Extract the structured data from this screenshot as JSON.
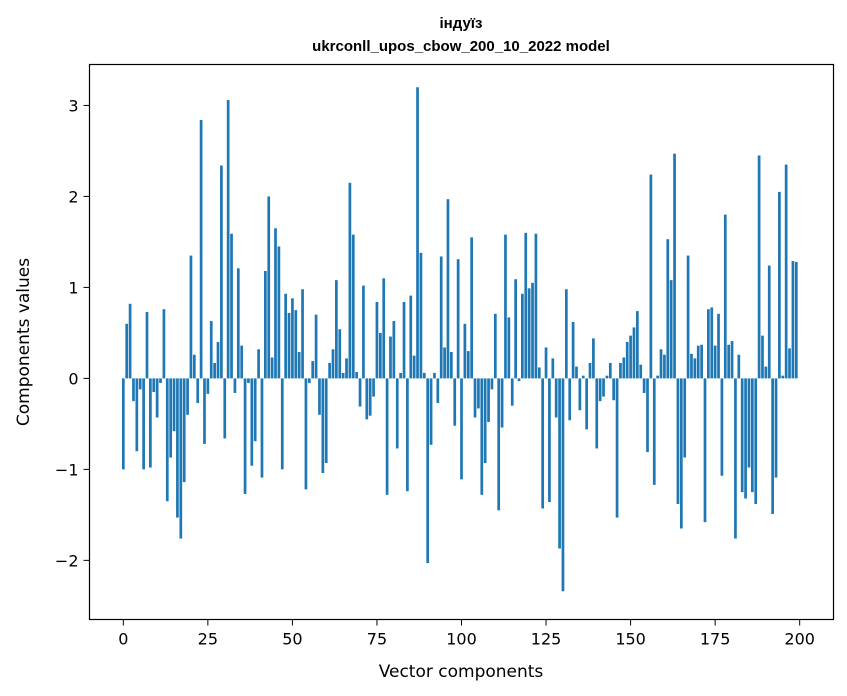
{
  "chart_data": {
    "type": "bar",
    "title": "індуїз",
    "subtitle": "ukrconll_upos_cbow_200_10_2022 model",
    "xlabel": "Vector components",
    "ylabel": "Components values",
    "xlim": [
      -10,
      210
    ],
    "ylim": [
      -2.65,
      3.45
    ],
    "xticks": [
      0,
      25,
      50,
      75,
      100,
      125,
      150,
      175,
      200
    ],
    "yticks": [
      -2,
      -1,
      0,
      1,
      2,
      3
    ],
    "grid": false,
    "bar_color": "#1f77b4",
    "values": [
      -1.0,
      0.6,
      0.82,
      -0.25,
      -0.8,
      -0.12,
      -1.0,
      0.73,
      -0.98,
      -0.15,
      -0.43,
      -0.05,
      0.76,
      -1.35,
      -0.87,
      -0.58,
      -1.53,
      -1.76,
      -1.14,
      -0.4,
      1.35,
      0.26,
      -0.27,
      2.84,
      -0.72,
      -0.17,
      0.63,
      0.17,
      0.4,
      2.34,
      -0.66,
      3.06,
      1.59,
      -0.16,
      1.21,
      0.36,
      -1.27,
      -0.05,
      -0.96,
      -0.69,
      0.32,
      -1.09,
      1.18,
      2.0,
      0.23,
      1.65,
      1.45,
      -1.0,
      0.93,
      0.72,
      0.88,
      0.75,
      0.29,
      0.98,
      -1.22,
      -0.05,
      0.19,
      0.7,
      -0.4,
      -1.04,
      -0.93,
      0.17,
      0.32,
      1.08,
      0.54,
      0.06,
      0.22,
      2.15,
      1.58,
      0.07,
      -0.31,
      1.02,
      -0.45,
      -0.41,
      -0.2,
      0.84,
      0.5,
      1.1,
      -1.28,
      0.46,
      0.63,
      -0.77,
      0.06,
      0.84,
      -1.24,
      0.91,
      0.25,
      3.2,
      1.38,
      0.06,
      -2.03,
      -0.73,
      0.06,
      -0.27,
      1.34,
      0.34,
      1.97,
      0.29,
      -0.52,
      1.31,
      -1.11,
      0.6,
      0.3,
      1.55,
      -0.43,
      -0.33,
      -1.28,
      -0.93,
      -0.48,
      -0.12,
      0.71,
      -1.45,
      -0.54,
      1.58,
      0.67,
      -0.3,
      1.09,
      -0.03,
      0.93,
      1.6,
      0.99,
      1.05,
      1.59,
      0.12,
      -1.43,
      0.34,
      -1.36,
      0.22,
      -0.43,
      -1.87,
      -2.34,
      0.98,
      -0.46,
      0.62,
      0.13,
      -0.35,
      0.03,
      -0.56,
      0.17,
      0.44,
      -0.77,
      -0.25,
      -0.2,
      0.03,
      0.17,
      -0.24,
      -1.53,
      0.17,
      0.23,
      0.4,
      0.47,
      0.56,
      0.74,
      0.15,
      -0.16,
      -0.81,
      2.24,
      -1.17,
      0.03,
      0.32,
      0.26,
      1.53,
      1.08,
      2.47,
      -1.38,
      -1.65,
      -0.87,
      1.35,
      0.27,
      0.22,
      0.36,
      0.37,
      -1.58,
      0.76,
      0.78,
      0.36,
      0.71,
      -1.07,
      1.8,
      0.37,
      0.41,
      -1.76,
      0.26,
      -1.25,
      -1.32,
      -0.98,
      -1.25,
      -1.38,
      2.45,
      0.47,
      0.13,
      1.24,
      -1.49,
      -1.09,
      2.05,
      0.03,
      2.35,
      0.33,
      1.29,
      1.28
    ]
  }
}
